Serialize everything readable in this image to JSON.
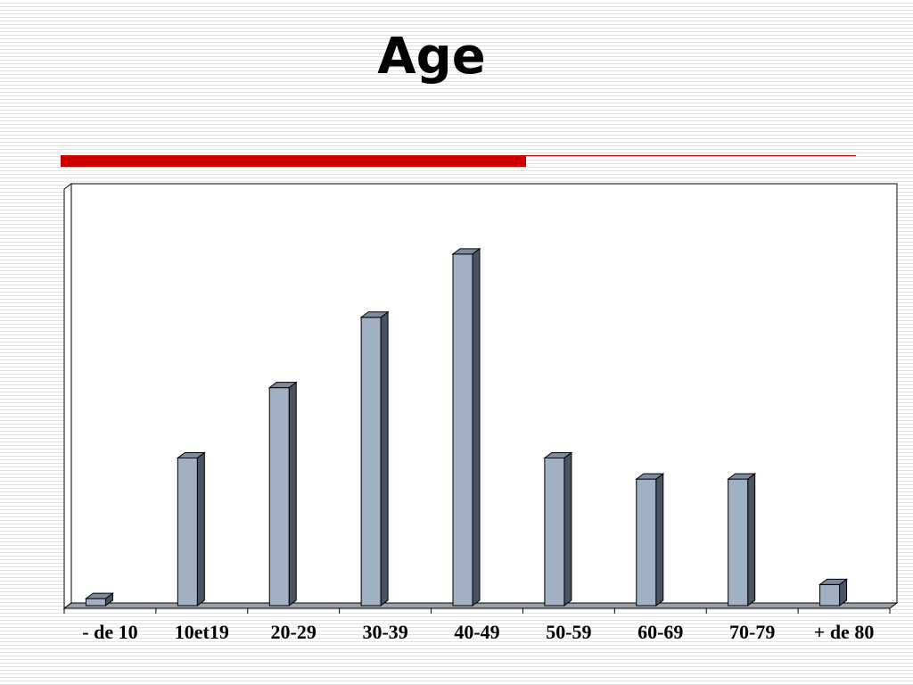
{
  "slide": {
    "title": "Age"
  },
  "colors": {
    "accent": "#cc0000",
    "bar_front": "#a1b0c3",
    "bar_side": "#4a5361",
    "bar_top": "#7d8a9c",
    "floor": "#9aa0a8"
  },
  "chart_data": {
    "type": "bar",
    "title": "",
    "xlabel": "",
    "ylabel": "",
    "categories": [
      "- de 10",
      "10et19",
      "20-29",
      "30-39",
      "40-49",
      "50-59",
      "60-69",
      "70-79",
      "+ de 80"
    ],
    "values": [
      1,
      21,
      31,
      41,
      50,
      21,
      18,
      18,
      3
    ],
    "ylim": [
      0,
      60
    ],
    "grid": false,
    "legend": "none",
    "style": "3d-column"
  }
}
